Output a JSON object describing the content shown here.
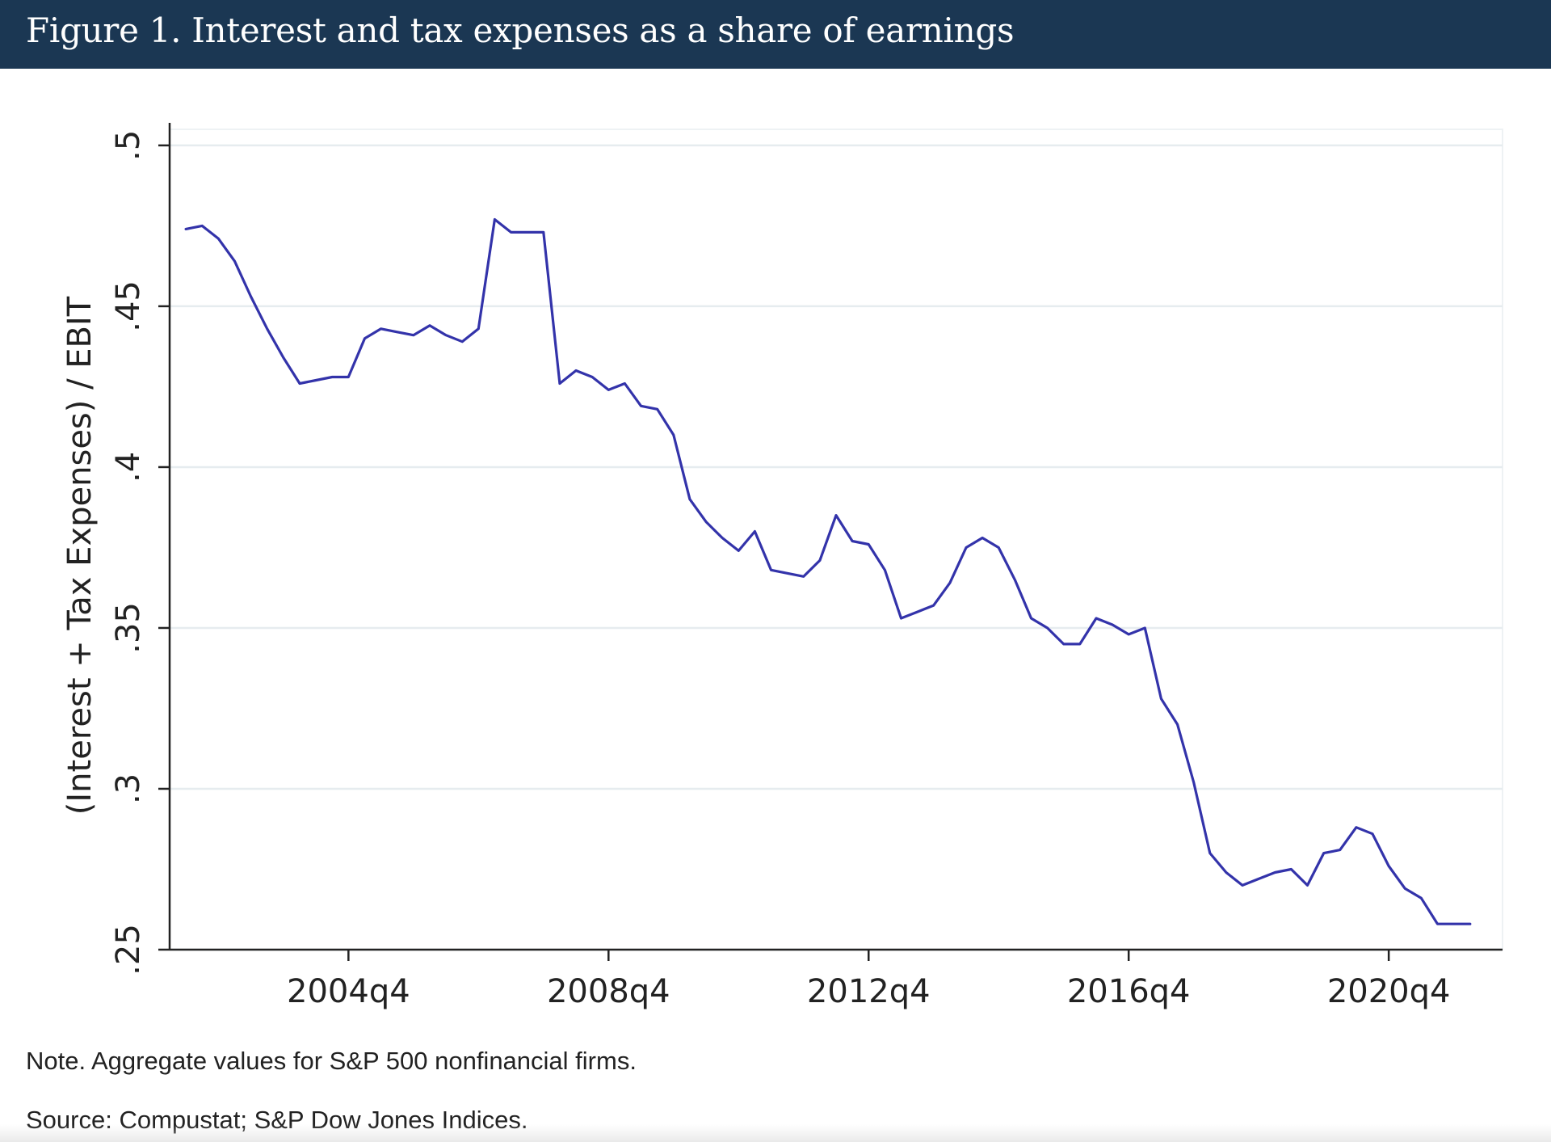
{
  "header": {
    "title": "Figure 1. Interest and tax expenses as a share of earnings"
  },
  "footer": {
    "note": "Note. Aggregate values for S&P 500 nonfinancial firms.",
    "source": "Source: Compustat; S&P Dow Jones Indices."
  },
  "colors": {
    "header_bg": "#1b3753",
    "line": "#3333aa",
    "grid": "#e6ecef",
    "axis": "#222222"
  },
  "chart_data": {
    "type": "line",
    "title": "",
    "xlabel": "",
    "ylabel": "(Interest + Tax Expenses) / EBIT",
    "xlim": [
      2002.0,
      2022.5
    ],
    "ylim": [
      0.25,
      0.505
    ],
    "yticks": [
      0.25,
      0.3,
      0.35,
      0.4,
      0.45,
      0.5
    ],
    "ytick_labels": [
      ".25",
      ".3",
      ".35",
      ".4",
      ".45",
      ".5"
    ],
    "xticks": [
      2004.75,
      2008.75,
      2012.75,
      2016.75,
      2020.75
    ],
    "xtick_labels": [
      "2004q4",
      "2008q4",
      "2012q4",
      "2016q4",
      "2020q4"
    ],
    "grid": true,
    "series": [
      {
        "name": "(Interest + Tax Expenses) / EBIT",
        "x": [
          2002.25,
          2002.5,
          2002.75,
          2003.0,
          2003.25,
          2003.5,
          2003.75,
          2004.0,
          2004.25,
          2004.5,
          2004.75,
          2005.0,
          2005.25,
          2005.5,
          2005.75,
          2006.0,
          2006.25,
          2006.5,
          2006.75,
          2007.0,
          2007.25,
          2007.5,
          2007.75,
          2008.0,
          2008.25,
          2008.5,
          2008.75,
          2009.0,
          2009.25,
          2009.5,
          2009.75,
          2010.0,
          2010.25,
          2010.5,
          2010.75,
          2011.0,
          2011.25,
          2011.5,
          2011.75,
          2012.0,
          2012.25,
          2012.5,
          2012.75,
          2013.0,
          2013.25,
          2013.5,
          2013.75,
          2014.0,
          2014.25,
          2014.5,
          2014.75,
          2015.0,
          2015.25,
          2015.5,
          2015.75,
          2016.0,
          2016.25,
          2016.5,
          2016.75,
          2017.0,
          2017.25,
          2017.5,
          2017.75,
          2018.0,
          2018.25,
          2018.5,
          2018.75,
          2019.0,
          2019.25,
          2019.5,
          2019.75,
          2020.0,
          2020.25,
          2020.5,
          2020.75,
          2021.0,
          2021.25,
          2021.5,
          2021.75,
          2022.0
        ],
        "values": [
          0.474,
          0.475,
          0.471,
          0.464,
          0.453,
          0.443,
          0.434,
          0.426,
          0.427,
          0.428,
          0.428,
          0.44,
          0.443,
          0.442,
          0.441,
          0.444,
          0.441,
          0.439,
          0.443,
          0.477,
          0.473,
          0.473,
          0.473,
          0.426,
          0.43,
          0.428,
          0.424,
          0.426,
          0.419,
          0.418,
          0.41,
          0.39,
          0.383,
          0.378,
          0.374,
          0.38,
          0.368,
          0.367,
          0.366,
          0.371,
          0.385,
          0.377,
          0.376,
          0.368,
          0.353,
          0.355,
          0.357,
          0.364,
          0.375,
          0.378,
          0.375,
          0.365,
          0.353,
          0.35,
          0.345,
          0.345,
          0.353,
          0.351,
          0.348,
          0.35,
          0.328,
          0.32,
          0.302,
          0.28,
          0.274,
          0.27,
          0.272,
          0.274,
          0.275,
          0.27,
          0.28,
          0.281,
          0.288,
          0.286,
          0.276,
          0.269,
          0.266,
          0.258,
          0.258,
          0.258
        ]
      }
    ]
  }
}
